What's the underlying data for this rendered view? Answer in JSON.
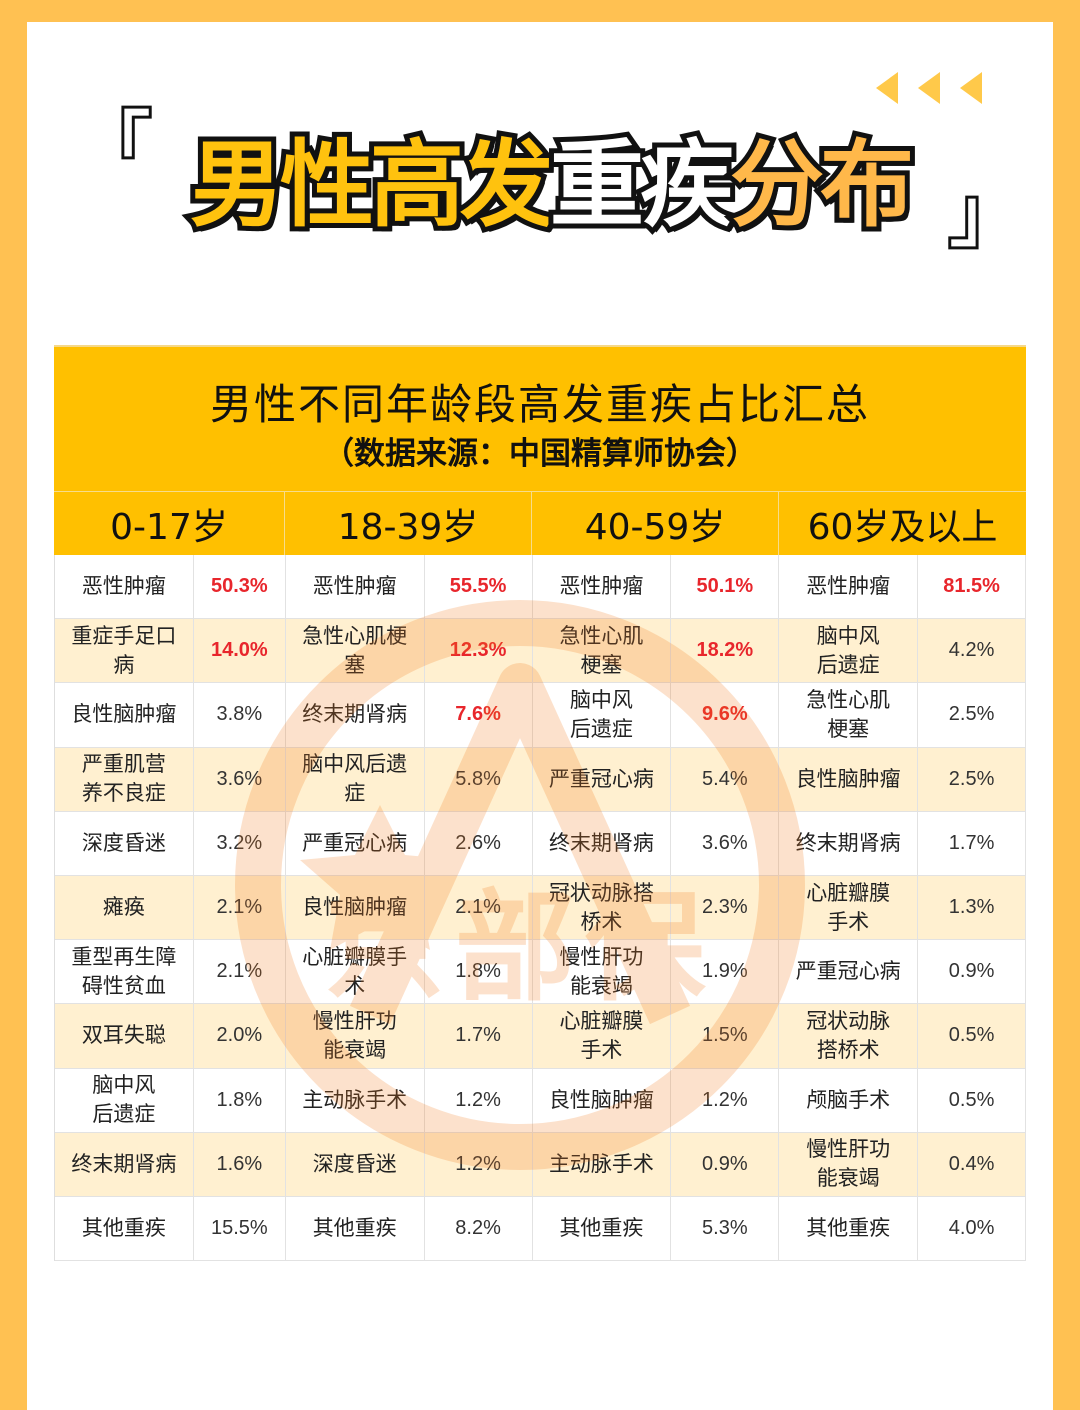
{
  "poster": {
    "title_parts": [
      {
        "text": "男性高发",
        "color": "yellow"
      },
      {
        "text": "重疾",
        "color": "white"
      },
      {
        "text": "分布",
        "color": "orange"
      }
    ],
    "bracket_open": "「",
    "bracket_close": "」",
    "decor": "three-left-arrows",
    "colors": {
      "border": "#ffc152",
      "header_bg": "#ffc000",
      "alt_row_bg": "#fff0cc",
      "highlight_red": "#e8262c"
    }
  },
  "table": {
    "title": "男性不同年龄段高发重疾占比汇总",
    "source": "（数据来源：中国精算师协会）",
    "age_groups": [
      "0-17岁",
      "18-39岁",
      "40-59岁",
      "60岁及以上"
    ],
    "rows": [
      [
        {
          "name": "恶性肿瘤",
          "value": "50.3%",
          "highlight": true
        },
        {
          "name": "恶性肿瘤",
          "value": "55.5%",
          "highlight": true
        },
        {
          "name": "恶性肿瘤",
          "value": "50.1%",
          "highlight": true
        },
        {
          "name": "恶性肿瘤",
          "value": "81.5%",
          "highlight": true
        }
      ],
      [
        {
          "name": "重症手足口病",
          "value": "14.0%",
          "highlight": true
        },
        {
          "name": "急性心肌梗塞",
          "value": "12.3%",
          "highlight": true
        },
        {
          "name": "急性心肌梗塞",
          "value": "18.2%",
          "highlight": true
        },
        {
          "name": "脑中风后遗症",
          "value": "4.2%",
          "highlight": false
        }
      ],
      [
        {
          "name": "良性脑肿瘤",
          "value": "3.8%",
          "highlight": false
        },
        {
          "name": "终末期肾病",
          "value": "7.6%",
          "highlight": true
        },
        {
          "name": "脑中风后遗症",
          "value": "9.6%",
          "highlight": true
        },
        {
          "name": "急性心肌梗塞",
          "value": "2.5%",
          "highlight": false
        }
      ],
      [
        {
          "name": "严重肌营养不良症",
          "value": "3.6%",
          "highlight": false
        },
        {
          "name": "脑中风后遗症",
          "value": "5.8%",
          "highlight": false
        },
        {
          "name": "严重冠心病",
          "value": "5.4%",
          "highlight": false
        },
        {
          "name": "良性脑肿瘤",
          "value": "2.5%",
          "highlight": false
        }
      ],
      [
        {
          "name": "深度昏迷",
          "value": "3.2%",
          "highlight": false
        },
        {
          "name": "严重冠心病",
          "value": "2.6%",
          "highlight": false
        },
        {
          "name": "终末期肾病",
          "value": "3.6%",
          "highlight": false
        },
        {
          "name": "终末期肾病",
          "value": "1.7%",
          "highlight": false
        }
      ],
      [
        {
          "name": "瘫痪",
          "value": "2.1%",
          "highlight": false
        },
        {
          "name": "良性脑肿瘤",
          "value": "2.1%",
          "highlight": false
        },
        {
          "name": "冠状动脉搭桥术",
          "value": "2.3%",
          "highlight": false
        },
        {
          "name": "心脏瓣膜手术",
          "value": "1.3%",
          "highlight": false
        }
      ],
      [
        {
          "name": "重型再生障碍性贫血",
          "value": "2.1%",
          "highlight": false
        },
        {
          "name": "心脏瓣膜手术",
          "value": "1.8%",
          "highlight": false
        },
        {
          "name": "慢性肝功能衰竭",
          "value": "1.9%",
          "highlight": false
        },
        {
          "name": "严重冠心病",
          "value": "0.9%",
          "highlight": false
        }
      ],
      [
        {
          "name": "双耳失聪",
          "value": "2.0%",
          "highlight": false
        },
        {
          "name": "慢性肝功能衰竭",
          "value": "1.7%",
          "highlight": false
        },
        {
          "name": "心脏瓣膜手术",
          "value": "1.5%",
          "highlight": false
        },
        {
          "name": "冠状动脉搭桥术",
          "value": "0.5%",
          "highlight": false
        }
      ],
      [
        {
          "name": "脑中风后遗症",
          "value": "1.8%",
          "highlight": false
        },
        {
          "name": "主动脉手术",
          "value": "1.2%",
          "highlight": false
        },
        {
          "name": "良性脑肿瘤",
          "value": "1.2%",
          "highlight": false
        },
        {
          "name": "颅脑手术",
          "value": "0.5%",
          "highlight": false
        }
      ],
      [
        {
          "name": "终末期肾病",
          "value": "1.6%",
          "highlight": false
        },
        {
          "name": "深度昏迷",
          "value": "1.2%",
          "highlight": false
        },
        {
          "name": "主动脉手术",
          "value": "0.9%",
          "highlight": false
        },
        {
          "name": "慢性肝功能衰竭",
          "value": "0.4%",
          "highlight": false
        }
      ],
      [
        {
          "name": "其他重疾",
          "value": "15.5%",
          "highlight": false
        },
        {
          "name": "其他重疾",
          "value": "8.2%",
          "highlight": false
        },
        {
          "name": "其他重疾",
          "value": "5.3%",
          "highlight": false
        },
        {
          "name": "其他重疾",
          "value": "4.0%",
          "highlight": false
        }
      ]
    ],
    "display_names": [
      [
        "恶性肿瘤",
        "恶性肿瘤",
        "恶性肿瘤",
        "恶性肿瘤"
      ],
      [
        "重症手足口\n病",
        "急性心肌梗\n塞",
        "急性心肌\n梗塞",
        "脑中风\n后遗症"
      ],
      [
        "良性脑肿瘤",
        "终末期肾病",
        "脑中风\n后遗症",
        "急性心肌\n梗塞"
      ],
      [
        "严重肌营\n养不良症",
        "脑中风后遗\n症",
        "严重冠心病",
        "良性脑肿瘤"
      ],
      [
        "深度昏迷",
        "严重冠心病",
        "终末期肾病",
        "终末期肾病"
      ],
      [
        "瘫痪",
        "良性脑肿瘤",
        "冠状动脉搭\n桥术",
        "心脏瓣膜\n手术"
      ],
      [
        "重型再生障\n碍性贫血",
        "心脏瓣膜手\n术",
        "慢性肝功\n能衰竭",
        "严重冠心病"
      ],
      [
        "双耳失聪",
        "慢性肝功\n能衰竭",
        "心脏瓣膜\n手术",
        "冠状动脉\n搭桥术"
      ],
      [
        "脑中风\n后遗症",
        "主动脉手术",
        "良性脑肿瘤",
        "颅脑手术"
      ],
      [
        "终末期肾病",
        "深度昏迷",
        "主动脉手术",
        "慢性肝功\n能衰竭"
      ],
      [
        "其他重疾",
        "其他重疾",
        "其他重疾",
        "其他重疾"
      ]
    ]
  },
  "watermark": {
    "text": "京部保",
    "shape": "circle-with-star-and-A"
  }
}
